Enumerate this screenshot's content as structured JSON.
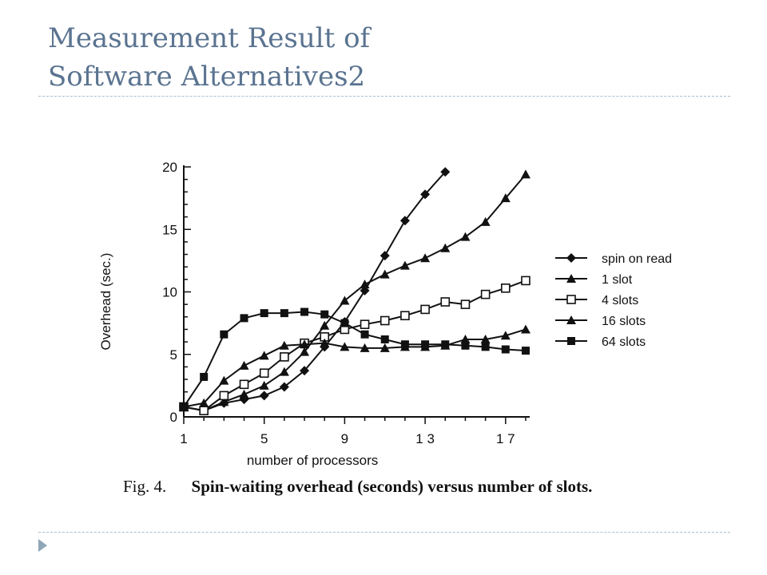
{
  "slide": {
    "title_line1": "Measurement Result of",
    "title_line2": "Software Alternatives2"
  },
  "caption": {
    "fig_label": "Fig. 4.",
    "text": "Spin-waiting overhead (seconds) versus number of slots."
  },
  "colors": {
    "title": "#5a7390",
    "rule": "#a9c0cf",
    "bullet": "#8ea6b8",
    "ink": "#111111"
  },
  "chart_data": {
    "type": "line",
    "title": "",
    "xlabel": "number of processors",
    "ylabel": "Overhead (sec.)",
    "xlim": [
      1,
      18.2
    ],
    "ylim": [
      0,
      20
    ],
    "x_ticks": [
      1,
      5,
      9,
      13,
      17
    ],
    "x_tick_labels": [
      "1",
      "5",
      "9",
      "1 3",
      "1 7"
    ],
    "y_ticks": [
      0,
      5,
      10,
      15,
      20
    ],
    "y_tick_labels": [
      "0",
      "5",
      "10",
      "15",
      "20"
    ],
    "grid": false,
    "legend_position": "right",
    "series": [
      {
        "name": "spin on read",
        "marker": "diamond",
        "x": [
          1,
          2,
          3,
          4,
          5,
          6,
          7,
          8,
          9,
          10,
          11,
          12,
          13,
          14
        ],
        "y": [
          0.8,
          0.5,
          1.1,
          1.4,
          1.7,
          2.4,
          3.7,
          5.6,
          7.6,
          10.1,
          12.9,
          15.7,
          17.8,
          19.6
        ]
      },
      {
        "name": "1 slot",
        "marker": "triangle",
        "x": [
          1,
          2,
          3,
          4,
          5,
          6,
          7,
          8,
          9,
          10,
          11,
          12,
          13,
          14,
          15,
          16,
          17,
          18
        ],
        "y": [
          0.8,
          0.5,
          1.2,
          1.8,
          2.5,
          3.6,
          5.2,
          7.3,
          9.3,
          10.6,
          11.4,
          12.1,
          12.7,
          13.5,
          14.4,
          15.6,
          17.5,
          19.4
        ]
      },
      {
        "name": "4 slots",
        "marker": "open-square",
        "x": [
          1,
          2,
          3,
          4,
          5,
          6,
          7,
          8,
          9,
          10,
          11,
          12,
          13,
          14,
          15,
          16,
          17,
          18
        ],
        "y": [
          0.8,
          0.5,
          1.7,
          2.6,
          3.5,
          4.8,
          5.9,
          6.4,
          7.0,
          7.4,
          7.7,
          8.1,
          8.6,
          9.2,
          9.0,
          9.8,
          10.3,
          10.9
        ]
      },
      {
        "name": "16 slots",
        "marker": "triangle",
        "x": [
          1,
          2,
          3,
          4,
          5,
          6,
          7,
          8,
          9,
          10,
          11,
          12,
          13,
          14,
          15,
          16,
          17,
          18
        ],
        "y": [
          0.8,
          1.1,
          2.9,
          4.1,
          4.9,
          5.7,
          5.8,
          5.9,
          5.6,
          5.5,
          5.5,
          5.6,
          5.6,
          5.7,
          6.2,
          6.2,
          6.5,
          7.0
        ]
      },
      {
        "name": "64 slots",
        "marker": "filled-square",
        "x": [
          1,
          2,
          3,
          4,
          5,
          6,
          7,
          8,
          9,
          10,
          11,
          12,
          13,
          14,
          15,
          16,
          17,
          18
        ],
        "y": [
          0.8,
          3.2,
          6.6,
          7.9,
          8.3,
          8.3,
          8.4,
          8.2,
          7.5,
          6.6,
          6.2,
          5.8,
          5.8,
          5.8,
          5.7,
          5.6,
          5.4,
          5.3
        ]
      }
    ]
  }
}
